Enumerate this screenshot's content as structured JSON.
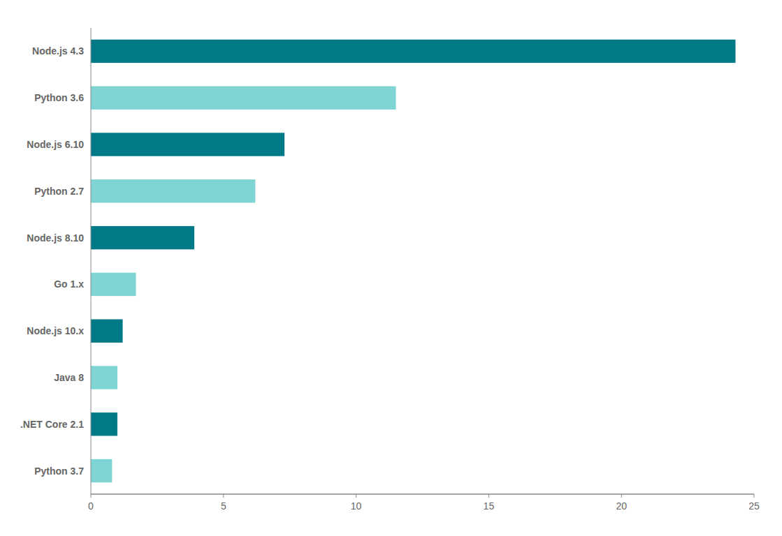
{
  "chart_data": {
    "type": "bar",
    "orientation": "horizontal",
    "categories": [
      "Python 3.7",
      ".NET Core 2.1",
      "Java 8",
      "Node.js 10.x",
      "Go 1.x",
      "Node.js 8.10",
      "Python 2.7",
      "Node.js 6.10",
      "Python 3.6",
      "Node.js 4.3"
    ],
    "values": [
      0.8,
      1.0,
      1.0,
      1.2,
      1.7,
      3.9,
      6.2,
      7.3,
      11.5,
      24.3
    ],
    "colors": [
      "#7fd4d4",
      "#007a87",
      "#7fd4d4",
      "#007a87",
      "#7fd4d4",
      "#007a87",
      "#7fd4d4",
      "#007a87",
      "#7fd4d4",
      "#007a87"
    ],
    "xlim": [
      0,
      25
    ],
    "xticks": [
      0,
      5,
      10,
      15,
      20,
      25
    ],
    "grid": false
  }
}
